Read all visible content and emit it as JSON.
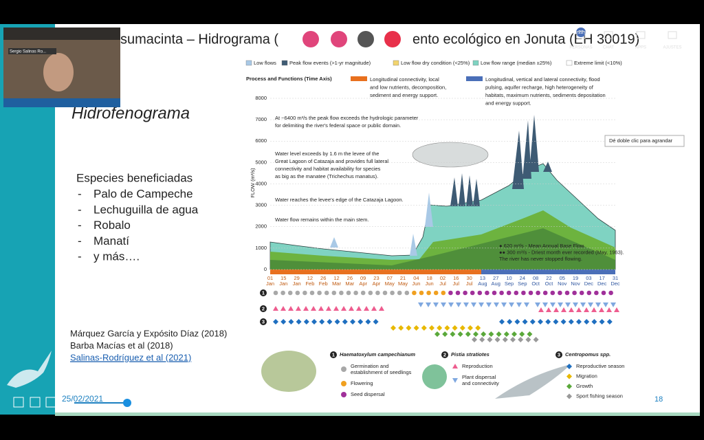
{
  "meeting": {
    "participant_name": "Sergio Salinas Ro...",
    "participants_count": "22",
    "buttons": [
      "PERSONAS",
      "CHAT",
      "APPS",
      "AJUSTES"
    ],
    "tooltip": "Dé doble clic para agrandar"
  },
  "slide": {
    "title_parts": [
      "sumacinta – Hidrograma (",
      "ento ecológico en Jonuta (EH 30019)"
    ],
    "heading": "Hidrofenograma",
    "species_heading": "Especies beneficiadas",
    "bullet": "-",
    "species": [
      "Palo de Campeche",
      "Lechuguilla de agua",
      "Robalo",
      "Manatí",
      "y más…."
    ],
    "references": [
      "Márquez García y Expósito Díaz (2018)",
      "Barba Macías et al (2018)",
      "Salinas-Rodríguez et al (2021)"
    ],
    "date": "25/02/2021",
    "page": "18"
  },
  "figure": {
    "legend": [
      {
        "label": "Low flows",
        "color": "#a9c9e6"
      },
      {
        "label": "Peak flow events (>1-yr magnitude)",
        "color": "#3e5b74"
      },
      {
        "label": "Low flow dry condition (<25%)",
        "color": "#f2d46e"
      },
      {
        "label": "Low flow range (median ±25%)",
        "color": "#7fd3c2"
      },
      {
        "label": "Extreme limit (<10%)",
        "color": "#ffffff"
      }
    ],
    "process_title": "Process and Functions (Time Axis)",
    "processes": [
      {
        "color": "#e8701e",
        "lines": [
          "Longitudinal connectivity, local",
          "and low nutrients, decomposition,",
          "sediment and energy support."
        ]
      },
      {
        "color": "#4a6fb8",
        "lines": [
          "Longitudinal, vertical and lateral connectivity, flood",
          "pulsing, aquifer recharge, high heterogeneity of",
          "habitats, maximum nutrients, sediments depositation",
          "and energy support."
        ]
      }
    ],
    "y_axis_label": "FLOW (m³/s)",
    "yticks": [
      0,
      1000,
      2000,
      3000,
      4000,
      5000,
      6000,
      7000,
      8000
    ],
    "x_days": [
      "01",
      "15",
      "29",
      "12",
      "26",
      "12",
      "26",
      "09",
      "23",
      "07",
      "21",
      "04",
      "18",
      "02",
      "16",
      "30",
      "13",
      "27",
      "10",
      "24",
      "08",
      "22",
      "05",
      "19",
      "03",
      "17",
      "31"
    ],
    "x_months": [
      "Jan",
      "Jan",
      "Jan",
      "Feb",
      "Feb",
      "Mar",
      "Mar",
      "Apr",
      "Apr",
      "May",
      "May",
      "Jun",
      "Jun",
      "Jul",
      "Jul",
      "Jul",
      "Aug",
      "Aug",
      "Sep",
      "Sep",
      "Oct",
      "Oct",
      "Nov",
      "Nov",
      "Dec",
      "Dec",
      "Dec"
    ],
    "annotations": [
      [
        "At ~6400 m³/s the peak flow exceeds the hydrologic parameter",
        "for delimiting the river's federal space or public domain."
      ],
      [
        "Water level exceeds by 1.6 m the levee of the",
        "Great Lagoon of Catazaja and provides full lateral",
        "connectivity and habitat availability for species",
        "as big as the manatee (Trichechus manatus)."
      ],
      [
        "Water reaches the levee's edge of the Catazaja Lagoon."
      ],
      [
        "Water flow remains within the main stem."
      ]
    ],
    "notes": [
      "● 620 m³/s - Mean Annual Base Flow.",
      "●● 300 m³/s - Driest month ever recorded (May, 1963).",
      "The river has never stopped flowing."
    ],
    "panels": [
      {
        "number": "1",
        "name": "Haematoxylum campechianum",
        "items": [
          {
            "lines": [
              "Germination and",
              "establishment of seedlings"
            ],
            "color": "#a8a8a8"
          },
          {
            "lines": [
              "Flowering"
            ],
            "color": "#f0a020"
          },
          {
            "lines": [
              "Seed dispersal"
            ],
            "color": "#a0309a"
          }
        ]
      },
      {
        "number": "2",
        "name": "Pistia stratiotes",
        "items": [
          {
            "lines": [
              "Reproduction"
            ],
            "color": "#ee5d8f"
          },
          {
            "lines": [
              "Plant dispersal",
              "and connectivity"
            ],
            "color": "#7fa8e0"
          }
        ]
      },
      {
        "number": "3",
        "name": "Centropomus spp.",
        "items": [
          {
            "lines": [
              "Reproductive season"
            ],
            "color": "#1f6fc0"
          },
          {
            "lines": [
              "Migration"
            ],
            "color": "#e8b800"
          },
          {
            "lines": [
              "Growth"
            ],
            "color": "#5aa83a"
          },
          {
            "lines": [
              "Sport fishing season"
            ],
            "color": "#999999"
          }
        ]
      }
    ]
  }
}
